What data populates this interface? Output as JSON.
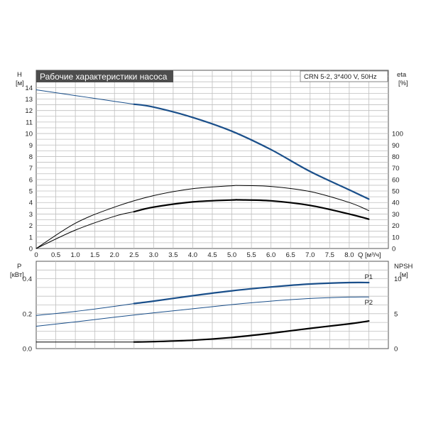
{
  "chart_data": [
    {
      "type": "line",
      "title": "Рабочие характеристики насоса",
      "pump_label": "CRN 5-2, 3*400 V, 50Hz",
      "xlabel": "Q [м³/ч]",
      "ylabel_left": "H",
      "ylabel_left_unit": "[м]",
      "ylabel_right": "eta",
      "ylabel_right_unit": "[%]",
      "xlim": [
        0,
        9.0
      ],
      "ylim": [
        0,
        15.5
      ],
      "ylim_right": [
        0,
        155
      ],
      "x_ticks": [
        "0",
        "0.5",
        "1.0",
        "1.5",
        "2.0",
        "2.5",
        "3.0",
        "3.5",
        "4.0",
        "4.5",
        "5.0",
        "5.5",
        "6.0",
        "6.5",
        "7.0",
        "7.5",
        "8.0"
      ],
      "y_ticks_left": [
        "0",
        "1",
        "2",
        "3",
        "4",
        "5",
        "6",
        "7",
        "8",
        "9",
        "10",
        "11",
        "12",
        "13",
        "14"
      ],
      "y_ticks_right": [
        "0",
        "10",
        "20",
        "30",
        "40",
        "50",
        "60",
        "70",
        "80",
        "90",
        "100"
      ],
      "grid": true,
      "series": [
        {
          "name": "",
          "color": "#1a4f8a",
          "axis": "left",
          "x": [
            0,
            1,
            2,
            2.5
          ],
          "y": [
            13.8,
            13.3,
            12.8,
            12.55
          ]
        },
        {
          "name": "",
          "color": "#1a4f8a",
          "axis": "left",
          "x": [
            2.5,
            3,
            4,
            5,
            6,
            7,
            8,
            8.5
          ],
          "y": [
            12.55,
            12.3,
            11.4,
            10.2,
            8.6,
            6.7,
            5.1,
            4.3
          ]
        },
        {
          "name": "",
          "color": "#000000",
          "axis": "right",
          "x": [
            0,
            1,
            2,
            3,
            4,
            5,
            5.2,
            6,
            7,
            8,
            8.5
          ],
          "y": [
            0,
            22,
            36,
            46,
            52,
            54.6,
            54.8,
            54,
            49.5,
            40,
            33
          ]
        },
        {
          "name": "",
          "color": "#000000",
          "axis": "right",
          "x": [
            0,
            1,
            2,
            2.5
          ],
          "y": [
            0,
            16,
            28,
            32
          ]
        },
        {
          "name": "",
          "color": "#000000",
          "axis": "right",
          "x": [
            2.5,
            3,
            4,
            5,
            5.2,
            6,
            7,
            8,
            8.5
          ],
          "y": [
            32,
            36,
            40.5,
            42.2,
            42.3,
            41.5,
            37.5,
            30,
            25.5
          ]
        }
      ]
    },
    {
      "type": "line",
      "xlim": [
        0,
        9.0
      ],
      "ylabel_left": "P",
      "ylabel_left_unit": "[кВт]",
      "ylabel_right": "NPSH",
      "ylabel_right_unit": "[м]",
      "ylim": [
        0,
        0.5
      ],
      "ylim_right": [
        0,
        12.5
      ],
      "y_ticks_left": [
        "0.0",
        "0.2",
        "0.4"
      ],
      "y_ticks_right": [
        "0",
        "5",
        "10"
      ],
      "grid": true,
      "series": [
        {
          "name": "",
          "color": "#1a4f8a",
          "axis": "left",
          "x": [
            0,
            1,
            2,
            2.5
          ],
          "y": [
            0.19,
            0.213,
            0.242,
            0.258
          ]
        },
        {
          "name": "P1",
          "color": "#1a4f8a",
          "axis": "left",
          "x": [
            2.5,
            3,
            4,
            5,
            6,
            7,
            8,
            8.5
          ],
          "y": [
            0.258,
            0.272,
            0.303,
            0.331,
            0.353,
            0.37,
            0.378,
            0.378
          ]
        },
        {
          "name": "",
          "color": "#1a4f8a",
          "axis": "left",
          "x": [
            0,
            1,
            2,
            3,
            4,
            5,
            6,
            7,
            8,
            8.5
          ],
          "y": [
            0.128,
            0.153,
            0.18,
            0.205,
            0.228,
            0.252,
            0.272,
            0.287,
            0.295,
            0.296
          ]
        },
        {
          "name": "P2",
          "color": "#1a4f8a",
          "axis": "left",
          "x": [
            8.5
          ],
          "y": [
            0.296
          ]
        },
        {
          "name": "",
          "color": "#000000",
          "axis": "right",
          "x": [
            0,
            1,
            2,
            2.5
          ],
          "y": [
            0.95,
            0.95,
            0.95,
            0.95
          ]
        },
        {
          "name": "",
          "color": "#000000",
          "axis": "right",
          "x": [
            2.5,
            3,
            4,
            5,
            6,
            7,
            8,
            8.5
          ],
          "y": [
            0.95,
            1.0,
            1.2,
            1.6,
            2.2,
            2.9,
            3.55,
            3.95
          ]
        }
      ]
    }
  ]
}
